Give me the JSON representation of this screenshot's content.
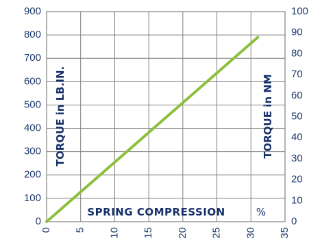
{
  "chart_data": {
    "type": "line",
    "title": "",
    "xlabel": "SPRING  COMPRESSION",
    "xlabel_unit": "%",
    "ylabel_left": "TORQUE in LB.IN.",
    "ylabel_right": "TORQUE in NM",
    "xlim": [
      0,
      35
    ],
    "ylim_left": [
      0,
      900
    ],
    "ylim_right": [
      0,
      100
    ],
    "x_ticks": [
      "0",
      "5",
      "10",
      "15",
      "20",
      "25",
      "30",
      "35"
    ],
    "y_ticks_left": [
      "0",
      "100",
      "200",
      "300",
      "400",
      "500",
      "600",
      "700",
      "800",
      "900"
    ],
    "y_ticks_right": [
      "0",
      "10",
      "20",
      "30",
      "40",
      "50",
      "60",
      "70",
      "80",
      "90",
      "100"
    ],
    "grid": true,
    "series": [
      {
        "x": [
          0,
          31
        ],
        "y": [
          0,
          790
        ],
        "color": "#8bbf3f"
      }
    ],
    "colors": {
      "text": "#1f3a6b",
      "grid": "#7f7f7f",
      "line": "#8bbf3f"
    }
  }
}
